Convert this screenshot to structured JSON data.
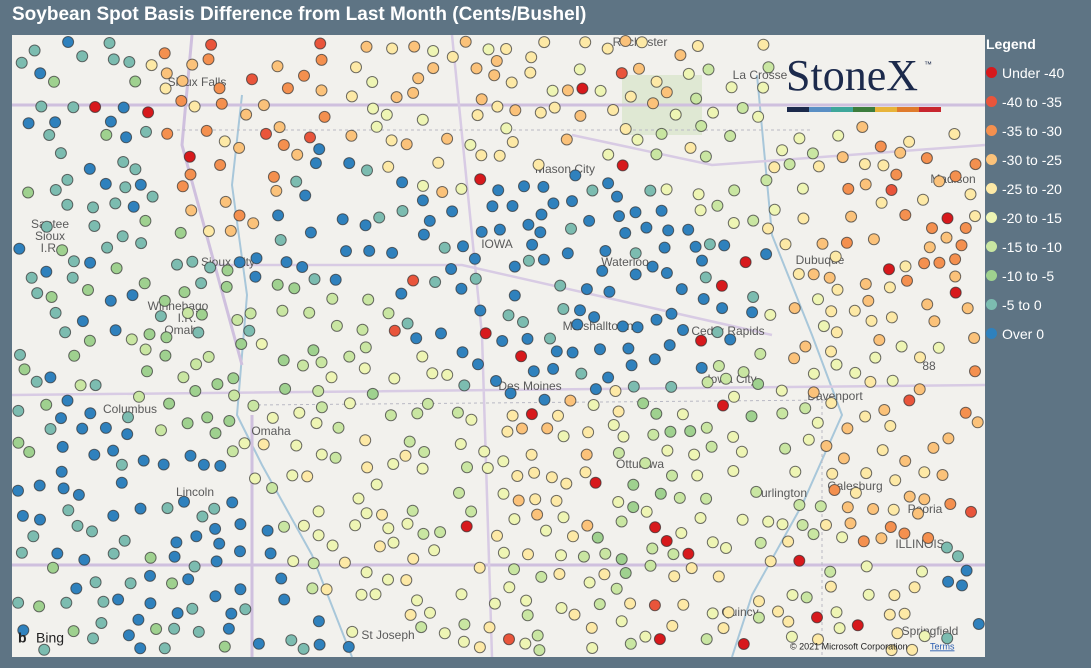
{
  "header": {
    "title": "Soybean Spot Basis Difference from Last Month (Cents/Bushel)"
  },
  "legend": {
    "title": "Legend",
    "items": [
      {
        "label": "Under -40",
        "color": "#d7191c"
      },
      {
        "label": "-40 to -35",
        "color": "#e9553b"
      },
      {
        "label": "-35 to -30",
        "color": "#f4904f"
      },
      {
        "label": "-30 to -25",
        "color": "#fbc27a"
      },
      {
        "label": "-25 to -20",
        "color": "#fde9a6"
      },
      {
        "label": "-20 to -15",
        "color": "#eef5b4"
      },
      {
        "label": "-15 to -10",
        "color": "#c9e6a2"
      },
      {
        "label": "-10 to -5",
        "color": "#9fd18f"
      },
      {
        "label": "-5 to 0",
        "color": "#7cbcb0"
      },
      {
        "label": "Over 0",
        "color": "#2f81bd"
      }
    ]
  },
  "logo": {
    "name": "StoneX",
    "mark": "™"
  },
  "map": {
    "places": [
      "Rochester",
      "La Crosse",
      "Madison",
      "Sioux Falls",
      "Mason City",
      "IOWA",
      "Sioux City",
      "Waterloo",
      "Dubuque",
      "Winnebago",
      "I.R.",
      "Omaha",
      "Marshalltown",
      "Cedar Rapids",
      "Des Moines",
      "Iowa City",
      "Davenport",
      "Columbus",
      "Omaha",
      "Lincoln",
      "Ottumwa",
      "Burlington",
      "Galesburg",
      "Peoria",
      "ILLINOIS",
      "Quincy",
      "St Joseph",
      "Springfield",
      "Santee",
      "Sioux",
      "I.R.",
      "88"
    ],
    "provider": "Bing",
    "copyright": "© 2021 Microsoft Corporation",
    "terms": "Terms"
  }
}
